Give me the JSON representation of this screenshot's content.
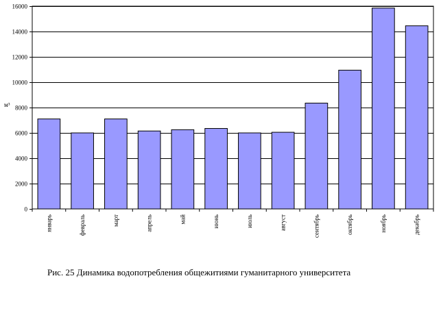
{
  "chart_data": {
    "type": "bar",
    "categories": [
      "январь",
      "февраль",
      "март",
      "апрель",
      "май",
      "июнь",
      "июль",
      "август",
      "сентябрь",
      "октябрь",
      "ноябрь",
      "декабрь"
    ],
    "values": [
      7100,
      6000,
      7100,
      6150,
      6250,
      6350,
      6000,
      6050,
      8350,
      10950,
      15850,
      14450
    ],
    "ylabel": "м³",
    "xlabel": "",
    "ylim": [
      0,
      16000
    ],
    "yticks": [
      0,
      2000,
      4000,
      6000,
      8000,
      10000,
      12000,
      14000,
      16000
    ],
    "grid": true,
    "legend": "none",
    "bar_color": "#9999ff",
    "bar_stroke": "#000000"
  },
  "caption": "Рис. 25 Динамика водопотребления общежитиями гуманитарного университета"
}
